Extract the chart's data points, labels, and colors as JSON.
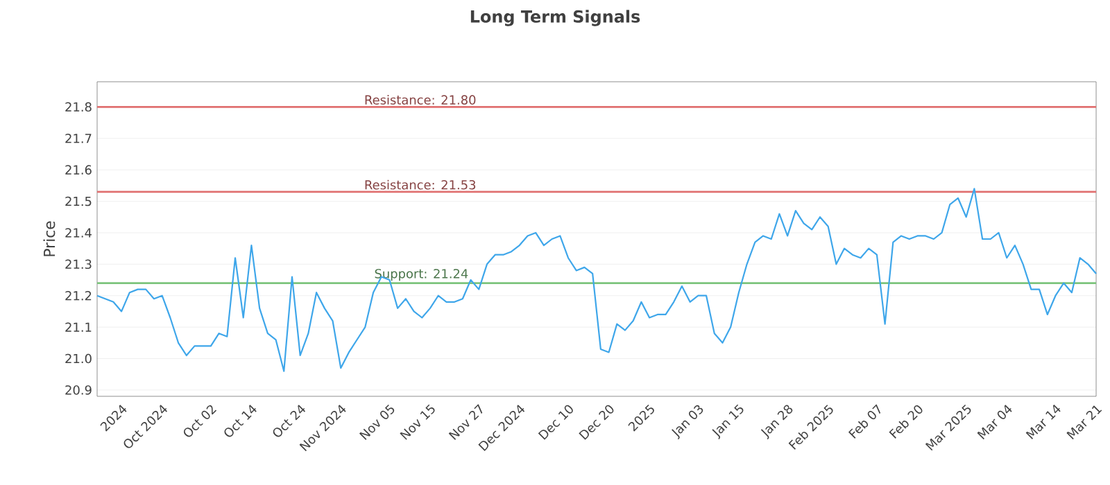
{
  "chart_data": {
    "type": "line",
    "title": "Long Term Signals",
    "ylabel": "Price",
    "categories": [
      null,
      null,
      null,
      "2024",
      null,
      null,
      null,
      null,
      "Oct 2024",
      null,
      null,
      null,
      null,
      null,
      "Oct 02",
      null,
      null,
      null,
      null,
      "Oct 14",
      null,
      null,
      null,
      null,
      null,
      "Oct 24",
      null,
      null,
      null,
      null,
      "Nov 2024",
      null,
      null,
      null,
      null,
      null,
      "Nov 05",
      null,
      null,
      null,
      null,
      "Nov 15",
      null,
      null,
      null,
      null,
      null,
      "Nov 27",
      null,
      null,
      null,
      null,
      "Dec 2024",
      null,
      null,
      null,
      null,
      null,
      "Dec 10",
      null,
      null,
      null,
      null,
      "Dec 20",
      null,
      null,
      null,
      null,
      "2025",
      null,
      null,
      null,
      null,
      null,
      "Jan 03",
      null,
      null,
      null,
      null,
      "Jan 15",
      null,
      null,
      null,
      null,
      null,
      "Jan 28",
      null,
      null,
      null,
      null,
      "Feb 2025",
      null,
      null,
      null,
      null,
      null,
      "Feb 07",
      null,
      null,
      null,
      null,
      "Feb 20",
      null,
      null,
      null,
      null,
      null,
      "Mar 2025",
      null,
      null,
      null,
      null,
      "Mar 04",
      null,
      null,
      null,
      null,
      null,
      "Mar 14",
      null,
      null,
      null,
      null,
      "Mar 21"
    ],
    "series": [
      {
        "color": "#3ea6ea",
        "values": [
          21.2,
          21.19,
          21.18,
          21.15,
          21.21,
          21.22,
          21.22,
          21.19,
          21.2,
          21.13,
          21.05,
          21.01,
          21.04,
          21.04,
          21.04,
          21.08,
          21.07,
          21.32,
          21.13,
          21.36,
          21.16,
          21.08,
          21.06,
          20.96,
          21.26,
          21.01,
          21.08,
          21.21,
          21.16,
          21.12,
          20.97,
          21.02,
          21.06,
          21.1,
          21.21,
          21.26,
          21.25,
          21.16,
          21.19,
          21.15,
          21.13,
          21.16,
          21.2,
          21.18,
          21.18,
          21.19,
          21.25,
          21.22,
          21.3,
          21.33,
          21.33,
          21.34,
          21.36,
          21.39,
          21.4,
          21.36,
          21.38,
          21.39,
          21.32,
          21.28,
          21.29,
          21.27,
          21.03,
          21.02,
          21.11,
          21.09,
          21.12,
          21.18,
          21.13,
          21.14,
          21.14,
          21.18,
          21.23,
          21.18,
          21.2,
          21.2,
          21.08,
          21.05,
          21.1,
          21.21,
          21.3,
          21.37,
          21.39,
          21.38,
          21.46,
          21.39,
          21.47,
          21.43,
          21.41,
          21.45,
          21.42,
          21.3,
          21.35,
          21.33,
          21.32,
          21.35,
          21.33,
          21.11,
          21.37,
          21.39,
          21.38,
          21.39,
          21.39,
          21.38,
          21.4,
          21.49,
          21.51,
          21.45,
          21.54,
          21.38,
          21.38,
          21.4,
          21.32,
          21.36,
          21.3,
          21.22,
          21.22,
          21.14,
          21.2,
          21.24,
          21.21,
          21.32,
          21.3,
          21.27
        ]
      }
    ],
    "ylim": [
      20.88,
      21.88
    ],
    "yticks": [
      20.9,
      {
        "value": 21,
        "label": "21.0"
      },
      21.1,
      21.2,
      21.3,
      21.4,
      21.5,
      21.6,
      21.7,
      21.8
    ],
    "grid": "y",
    "marker": "none",
    "line_style": "solid",
    "ref_lines": [
      {
        "axis": "y",
        "value": 21.8,
        "label": "Resistance: 21.80",
        "color": "#e07070"
      },
      {
        "axis": "y",
        "value": 21.53,
        "label": "Resistance: 21.53",
        "color": "#e07070"
      },
      {
        "axis": "y",
        "value": 21.24,
        "label": "Support: 21.24",
        "color": "#7cc47c"
      }
    ]
  }
}
